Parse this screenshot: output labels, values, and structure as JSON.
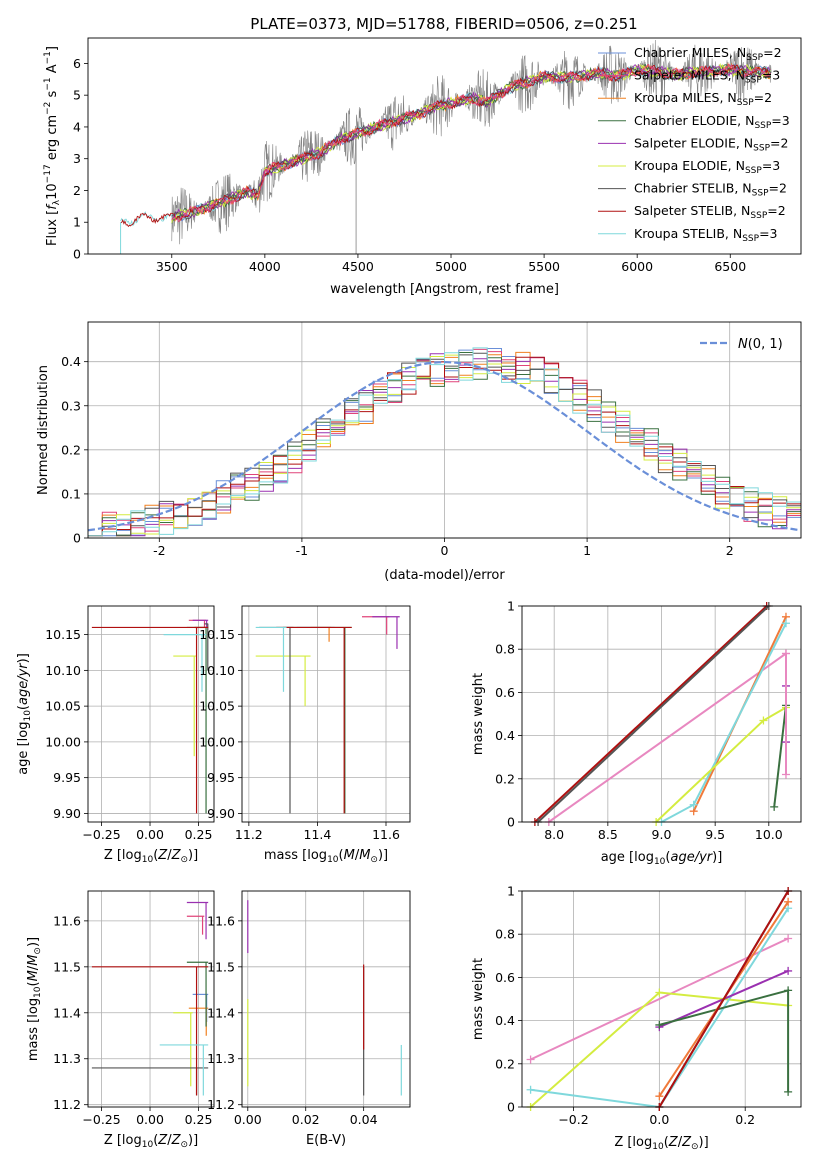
{
  "title": "PLATE=0373, MJD=51788, FIBERID=0506, z=0.251",
  "colors": {
    "chabrier_miles": "#6a8fd8",
    "salpeter_miles": "#e0447a",
    "kroupa_miles": "#f08020",
    "chabrier_elodie": "#3a7040",
    "salpeter_elodie": "#9a30b0",
    "kroupa_elodie": "#d4ec40",
    "chabrier_stelib": "#555555",
    "salpeter_stelib": "#b01010",
    "kroupa_stelib": "#7fd8dc",
    "data_spectrum": "#808080",
    "normal_curve": "#6a8fd8",
    "tomato": "#f07a3a",
    "pink": "#e888c0"
  },
  "chart_data": [
    {
      "type": "line",
      "id": "spectrum",
      "xlabel": "wavelength [Angstrom, rest frame]",
      "ylabel": "Flux [f_λ 10^-17 erg cm^-2 s^-1 A^-1]",
      "xlim": [
        3050,
        6880
      ],
      "ylim": [
        0,
        6.8
      ],
      "xticks": [
        3500,
        4000,
        4500,
        5000,
        5500,
        6000,
        6500
      ],
      "yticks": [
        0,
        1,
        2,
        3,
        4,
        5,
        6
      ],
      "grid": false,
      "legend_position": "top-right",
      "legend": [
        {
          "label": "Chabrier MILES, N",
          "sub": "SSP",
          "tail": "=2",
          "color_key": "chabrier_miles"
        },
        {
          "label": "Salpeter MILES, N",
          "sub": "SSP",
          "tail": "=3",
          "color_key": "salpeter_miles"
        },
        {
          "label": "Kroupa MILES, N",
          "sub": "SSP",
          "tail": "=2",
          "color_key": "kroupa_miles"
        },
        {
          "label": "Chabrier ELODIE, N",
          "sub": "SSP",
          "tail": "=3",
          "color_key": "chabrier_elodie"
        },
        {
          "label": "Salpeter ELODIE, N",
          "sub": "SSP",
          "tail": "=2",
          "color_key": "salpeter_elodie"
        },
        {
          "label": "Kroupa ELODIE, N",
          "sub": "SSP",
          "tail": "=3",
          "color_key": "kroupa_elodie"
        },
        {
          "label": "Chabrier STELIB, N",
          "sub": "SSP",
          "tail": "=2",
          "color_key": "chabrier_stelib"
        },
        {
          "label": "Salpeter STELIB, N",
          "sub": "SSP",
          "tail": "=2",
          "color_key": "salpeter_stelib"
        },
        {
          "label": "Kroupa STELIB, N",
          "sub": "SSP",
          "tail": "=3",
          "color_key": "kroupa_stelib"
        }
      ],
      "model_continuum": {
        "x": [
          3220,
          3300,
          3400,
          3500,
          3600,
          3700,
          3800,
          3900,
          3960,
          4000,
          4100,
          4200,
          4300,
          4400,
          4500,
          4600,
          4700,
          4800,
          4900,
          5000,
          5100,
          5200,
          5300,
          5400,
          5500,
          5600,
          5700,
          5800,
          5900,
          6000,
          6100,
          6200,
          6300,
          6400,
          6500,
          6600,
          6720
        ],
        "y": [
          1.0,
          1.1,
          1.15,
          1.15,
          1.3,
          1.5,
          1.7,
          1.95,
          1.85,
          2.6,
          2.8,
          3.0,
          3.2,
          3.6,
          3.8,
          4.0,
          4.2,
          4.35,
          4.6,
          4.75,
          4.9,
          4.8,
          5.2,
          5.4,
          5.6,
          5.55,
          5.6,
          5.7,
          5.6,
          5.8,
          5.75,
          5.65,
          5.7,
          5.75,
          5.8,
          5.75,
          5.7
        ]
      }
    },
    {
      "type": "bar",
      "id": "residuals",
      "xlabel": "(data-model)/error",
      "ylabel": "Normed distribution",
      "xlim": [
        -2.5,
        2.5
      ],
      "ylim": [
        0,
        0.49
      ],
      "xticks": [
        -2,
        -1,
        0,
        1,
        2
      ],
      "yticks": [
        0.0,
        0.1,
        0.2,
        0.3,
        0.4
      ],
      "grid": true,
      "legend_position": "top-right",
      "legend": [
        {
          "label": "N(0, 1)",
          "color_key": "normal_curve"
        }
      ],
      "bin_width": 0.1,
      "curve": {
        "mean": 0,
        "sigma": 1
      }
    },
    {
      "type": "scatter",
      "id": "age_vs_z",
      "xlabel": "Z [log10(Z/Z⊙)]",
      "ylabel": "age [log10(age/yr)]",
      "xlim": [
        -0.32,
        0.33
      ],
      "ylim": [
        9.888,
        10.19
      ],
      "xticks": [
        -0.25,
        0.0,
        0.25
      ],
      "xtick_labels": [
        "−0.25",
        "0.00",
        "0.25"
      ],
      "yticks": [
        9.9,
        9.95,
        10.0,
        10.05,
        10.1,
        10.15
      ],
      "yticks_labels": [
        "9.90",
        "9.95",
        "10.00",
        "10.05",
        "10.10",
        "10.15"
      ],
      "grid": true,
      "points": [
        {
          "color_key": "chabrier_miles",
          "x": [
            0.23,
            0.3
          ],
          "y": [
            10.16,
            10.16
          ]
        },
        {
          "color_key": "salpeter_miles",
          "x": [
            0.2,
            0.29
          ],
          "y": [
            10.16,
            10.17
          ]
        },
        {
          "color_key": "kroupa_miles",
          "x": [
            0.23,
            0.3
          ],
          "y": [
            10.16,
            10.16
          ]
        },
        {
          "color_key": "chabrier_elodie",
          "x": [
            0.19,
            0.3
          ],
          "y": [
            9.9,
            10.16
          ]
        },
        {
          "color_key": "salpeter_elodie",
          "x": [
            0.22,
            0.3
          ],
          "y": [
            10.16,
            10.17
          ]
        },
        {
          "color_key": "kroupa_elodie",
          "x": [
            0.12,
            0.24
          ],
          "y": [
            9.98,
            10.12
          ]
        },
        {
          "color_key": "chabrier_stelib",
          "x": [
            0.28,
            0.3
          ],
          "y": [
            10.1,
            10.165
          ]
        },
        {
          "color_key": "salpeter_stelib",
          "x": [
            -0.3,
            0.3
          ],
          "y": [
            9.9,
            10.16
          ]
        },
        {
          "color_key": "kroupa_stelib",
          "x": [
            0.07,
            0.29
          ],
          "y": [
            10.07,
            10.15
          ]
        }
      ]
    },
    {
      "type": "scatter",
      "id": "age_vs_mass",
      "xlabel": "mass [log10(M/M⊙)]",
      "ylabel": "",
      "xlim": [
        11.18,
        11.67
      ],
      "ylim": [
        9.888,
        10.19
      ],
      "xticks": [
        11.2,
        11.4,
        11.6
      ],
      "yticks": [
        9.9,
        9.95,
        10.0,
        10.05,
        10.1,
        10.15
      ],
      "yticks_labels": [
        "9.90",
        "9.95",
        "10.00",
        "10.05",
        "10.10",
        "10.15"
      ],
      "grid": true,
      "points": [
        {
          "color_key": "chabrier_miles",
          "x": [
            11.34,
            11.45
          ],
          "y": [
            10.16,
            10.16
          ]
        },
        {
          "color_key": "salpeter_miles",
          "x": [
            11.53,
            11.61
          ],
          "y": [
            10.15,
            10.175
          ]
        },
        {
          "color_key": "kroupa_miles",
          "x": [
            11.38,
            11.44
          ],
          "y": [
            10.14,
            10.16
          ]
        },
        {
          "color_key": "chabrier_elodie",
          "x": [
            11.3,
            11.5
          ],
          "y": [
            9.9,
            10.16
          ]
        },
        {
          "color_key": "salpeter_elodie",
          "x": [
            11.56,
            11.64
          ],
          "y": [
            10.13,
            10.175
          ]
        },
        {
          "color_key": "kroupa_elodie",
          "x": [
            11.22,
            11.38
          ],
          "y": [
            10.05,
            10.12
          ]
        },
        {
          "color_key": "chabrier_stelib",
          "x": [
            11.23,
            11.33
          ],
          "y": [
            9.9,
            10.16
          ]
        },
        {
          "color_key": "salpeter_stelib",
          "x": [
            11.28,
            11.5
          ],
          "y": [
            9.9,
            10.16
          ]
        },
        {
          "color_key": "kroupa_stelib",
          "x": [
            11.22,
            11.31
          ],
          "y": [
            10.07,
            10.16
          ]
        }
      ]
    },
    {
      "type": "line",
      "id": "massweight_vs_age",
      "xlabel": "age [log10(age/yr)]",
      "ylabel": "mass weight",
      "xlim": [
        7.7,
        10.3
      ],
      "ylim": [
        0,
        1.0
      ],
      "xticks": [
        8.0,
        8.5,
        9.0,
        9.5,
        10.0
      ],
      "xtick_labels": [
        "8.0",
        "8.5",
        "9.0",
        "9.5",
        "10.0"
      ],
      "yticks": [
        0.0,
        0.2,
        0.4,
        0.6,
        0.8,
        1.0
      ],
      "grid": true,
      "series": [
        {
          "color_key": "salpeter_stelib",
          "x": [
            7.82,
            9.98
          ],
          "y": [
            0.0,
            1.0
          ]
        },
        {
          "color_key": "chabrier_stelib",
          "x": [
            7.85,
            10.0
          ],
          "y": [
            0.0,
            1.0
          ]
        },
        {
          "color_key": "pink",
          "x": [
            7.95,
            10.16
          ],
          "y": [
            0.0,
            0.78
          ]
        },
        {
          "color_key": "tomato",
          "x": [
            9.3,
            10.16
          ],
          "y": [
            0.05,
            0.95
          ]
        },
        {
          "color_key": "kroupa_stelib",
          "x": [
            9.0,
            9.3,
            10.16
          ],
          "y": [
            0.0,
            0.08,
            0.92
          ]
        },
        {
          "color_key": "kroupa_elodie",
          "x": [
            8.95,
            9.95,
            10.16
          ],
          "y": [
            0.0,
            0.47,
            0.53
          ]
        },
        {
          "color_key": "chabrier_elodie",
          "x": [
            10.05,
            10.16
          ],
          "y": [
            0.07,
            0.54
          ]
        },
        {
          "color_key": "salpeter_elodie",
          "x": [
            10.16,
            10.16
          ],
          "y": [
            0.37,
            0.63
          ]
        },
        {
          "color_key": "pink",
          "x": [
            10.16,
            10.16
          ],
          "y": [
            0.22,
            0.78
          ]
        }
      ]
    },
    {
      "type": "scatter",
      "id": "mass_vs_z",
      "xlabel": "Z [log10(Z/Z⊙)]",
      "ylabel": "mass [log10(M/M⊙)]",
      "xlim": [
        -0.32,
        0.33
      ],
      "ylim": [
        11.195,
        11.665
      ],
      "xticks": [
        -0.25,
        0.0,
        0.25
      ],
      "xtick_labels": [
        "−0.25",
        "0.00",
        "0.25"
      ],
      "yticks": [
        11.2,
        11.3,
        11.4,
        11.5,
        11.6
      ],
      "grid": true,
      "points": [
        {
          "color_key": "chabrier_miles",
          "x": [
            0.22,
            0.3
          ],
          "y": [
            11.38,
            11.44
          ]
        },
        {
          "color_key": "salpeter_miles",
          "x": [
            0.19,
            0.28
          ],
          "y": [
            11.57,
            11.61
          ]
        },
        {
          "color_key": "kroupa_miles",
          "x": [
            0.2,
            0.3
          ],
          "y": [
            11.35,
            11.41
          ]
        },
        {
          "color_key": "chabrier_elodie",
          "x": [
            0.19,
            0.3
          ],
          "y": [
            11.37,
            11.51
          ]
        },
        {
          "color_key": "salpeter_elodie",
          "x": [
            0.19,
            0.3
          ],
          "y": [
            11.56,
            11.64
          ]
        },
        {
          "color_key": "kroupa_elodie",
          "x": [
            0.12,
            0.22
          ],
          "y": [
            11.24,
            11.4
          ]
        },
        {
          "color_key": "chabrier_stelib",
          "x": [
            -0.3,
            0.3
          ],
          "y": [
            11.22,
            11.28
          ]
        },
        {
          "color_key": "salpeter_stelib",
          "x": [
            -0.3,
            0.3
          ],
          "y": [
            11.22,
            11.5
          ]
        },
        {
          "color_key": "kroupa_stelib",
          "x": [
            0.05,
            0.3
          ],
          "y": [
            11.22,
            11.33
          ]
        }
      ]
    },
    {
      "type": "scatter",
      "id": "mass_vs_ebv",
      "xlabel": "E(B-V)",
      "ylabel": "",
      "xlim": [
        -0.002,
        0.056
      ],
      "ylim": [
        11.195,
        11.665
      ],
      "xticks": [
        0.0,
        0.02,
        0.04
      ],
      "xtick_labels": [
        "0.00",
        "0.02",
        "0.04"
      ],
      "yticks": [
        11.2,
        11.3,
        11.4,
        11.5,
        11.6
      ],
      "grid": true,
      "vlines": [
        {
          "color_key": "salpeter_elodie",
          "x": 0.0,
          "y": [
            11.53,
            11.645
          ]
        },
        {
          "color_key": "kroupa_elodie",
          "x": 0.0,
          "y": [
            11.24,
            11.43
          ]
        },
        {
          "color_key": "chabrier_stelib",
          "x": 0.04,
          "y": [
            11.22,
            11.5
          ]
        },
        {
          "color_key": "salpeter_stelib",
          "x": 0.04,
          "y": [
            11.32,
            11.505
          ]
        },
        {
          "color_key": "kroupa_stelib",
          "x": 0.053,
          "y": [
            11.22,
            11.33
          ]
        }
      ]
    },
    {
      "type": "line",
      "id": "massweight_vs_z",
      "xlabel": "Z [log10(Z/Z⊙)]",
      "ylabel": "mass weight",
      "xlim": [
        -0.32,
        0.33
      ],
      "ylim": [
        0,
        1.0
      ],
      "xticks": [
        -0.2,
        0.0,
        0.2
      ],
      "xtick_labels": [
        "−0.2",
        "0.0",
        "0.2"
      ],
      "yticks": [
        0.0,
        0.2,
        0.4,
        0.6,
        0.8,
        1.0
      ],
      "grid": true,
      "series": [
        {
          "color_key": "pink",
          "x": [
            -0.3,
            0.3
          ],
          "y": [
            0.22,
            0.78
          ]
        },
        {
          "color_key": "kroupa_elodie",
          "x": [
            -0.3,
            0.0,
            0.3
          ],
          "y": [
            0.0,
            0.53,
            0.47
          ]
        },
        {
          "color_key": "kroupa_stelib",
          "x": [
            -0.3,
            0.0,
            0.3
          ],
          "y": [
            0.08,
            0.0,
            0.92
          ]
        },
        {
          "color_key": "salpeter_elodie",
          "x": [
            0.0,
            0.3
          ],
          "y": [
            0.37,
            0.63
          ]
        },
        {
          "color_key": "chabrier_elodie",
          "x": [
            0.0,
            0.3,
            0.3
          ],
          "y": [
            0.38,
            0.54,
            0.07
          ]
        },
        {
          "color_key": "tomato",
          "x": [
            0.0,
            0.3
          ],
          "y": [
            0.05,
            0.95
          ]
        },
        {
          "color_key": "chabrier_stelib",
          "x": [
            0.0,
            0.3
          ],
          "y": [
            0.0,
            1.0
          ]
        },
        {
          "color_key": "salpeter_stelib",
          "x": [
            0.0,
            0.3
          ],
          "y": [
            0.0,
            1.0
          ]
        }
      ]
    }
  ]
}
